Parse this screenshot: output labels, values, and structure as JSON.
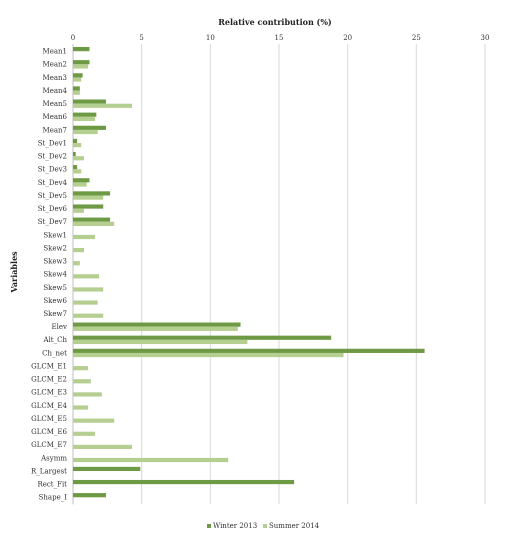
{
  "chart_data": {
    "type": "bar",
    "orientation": "horizontal",
    "xlabel": "Relative contribution (%)",
    "ylabel": "Variables",
    "xlim": [
      0,
      30
    ],
    "xticks": [
      0,
      5,
      10,
      15,
      20,
      25,
      30
    ],
    "grid": true,
    "legend_position": "bottom",
    "categories": [
      "Mean1",
      "Mean2",
      "Mean3",
      "Mean4",
      "Mean5",
      "Mean6",
      "Mean7",
      "St_Dev1",
      "St_Dev2",
      "St_Dev3",
      "St_Dev4",
      "St_Dev5",
      "St_Dev6",
      "St_Dev7",
      "Skew1",
      "Skew2",
      "Skew3",
      "Skew4",
      "Skew5",
      "Skew6",
      "Skew7",
      "Elev",
      "Alt_Ch",
      "Ch_net",
      "GLCM_E1",
      "GLCM_E2",
      "GLCM_E3",
      "GLCM_E4",
      "GLCM_E5",
      "GLCM_E6",
      "GLCM_E7",
      "Asymm",
      "R_Largest",
      "Rect_Fit",
      "Shape_I"
    ],
    "series": [
      {
        "name": "Winter 2013",
        "color": "#6f9a45",
        "values": [
          1.2,
          1.2,
          0.7,
          0.5,
          2.4,
          1.7,
          2.4,
          0.3,
          0.2,
          0.3,
          1.2,
          2.7,
          2.2,
          2.7,
          0,
          0,
          0,
          0,
          0,
          0,
          0,
          12.2,
          18.8,
          25.6,
          0,
          0,
          0,
          0,
          0,
          0,
          0,
          0,
          4.9,
          16.1,
          2.4
        ]
      },
      {
        "name": "Summer 2014",
        "color": "#b5cf91",
        "values": [
          0,
          1.1,
          0.6,
          0.5,
          4.3,
          1.6,
          1.8,
          0.6,
          0.8,
          0.6,
          1.0,
          2.2,
          0.8,
          3.0,
          1.6,
          0.8,
          0.5,
          1.9,
          2.2,
          1.8,
          2.2,
          12.0,
          12.7,
          19.7,
          1.1,
          1.3,
          2.1,
          1.1,
          3.0,
          1.6,
          4.3,
          11.3,
          0,
          0,
          0
        ]
      }
    ]
  }
}
